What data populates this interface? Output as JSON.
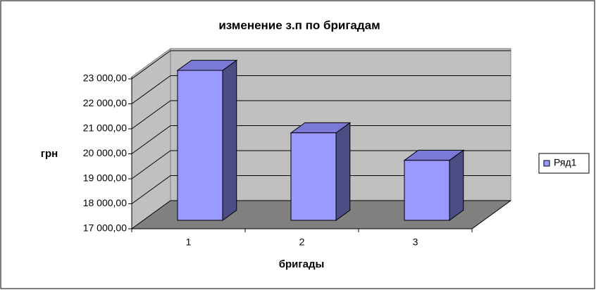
{
  "chart_data": {
    "type": "bar3d",
    "title": "изменение з.п по бригадам",
    "x_label": "бригады",
    "y_label": "грн",
    "categories": [
      "1",
      "2",
      "3"
    ],
    "series": [
      {
        "name": "Ряд1",
        "color": "#9999ff",
        "values": [
          23000,
          20500,
          19400
        ]
      }
    ],
    "ylim": [
      17000,
      23000
    ],
    "yticks": [
      {
        "value": 17000,
        "label": "17 000,00"
      },
      {
        "value": 18000,
        "label": "18 000,00"
      },
      {
        "value": 19000,
        "label": "19 000,00"
      },
      {
        "value": 20000,
        "label": "20 000,00"
      },
      {
        "value": 21000,
        "label": "21 000,00"
      },
      {
        "value": 22000,
        "label": "22 000,00"
      },
      {
        "value": 23000,
        "label": "23 000,00"
      }
    ],
    "grid": true,
    "legend": "right"
  }
}
